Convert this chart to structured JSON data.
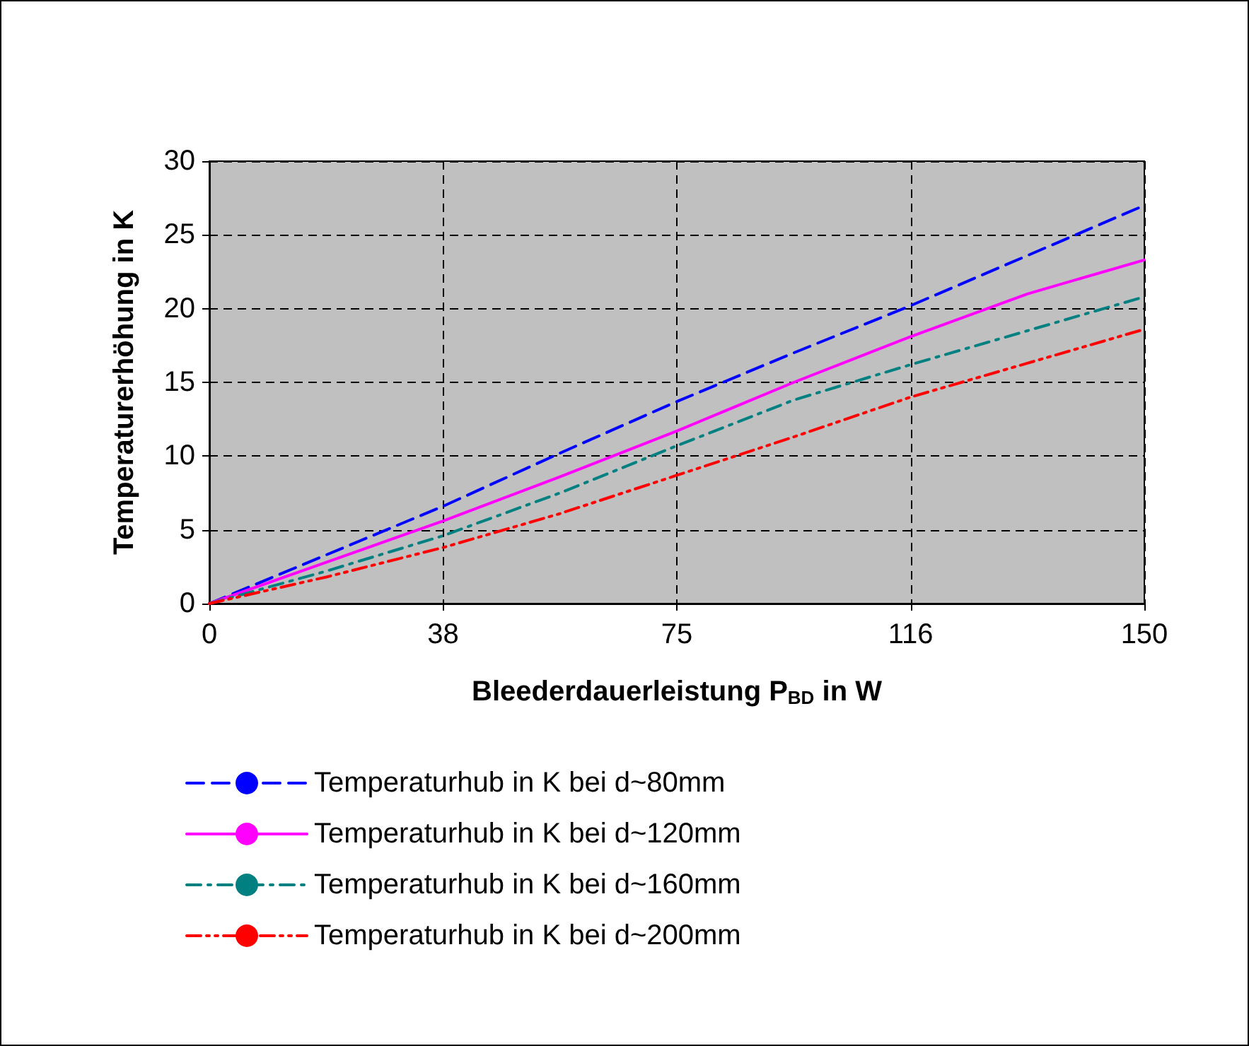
{
  "chart_data": {
    "type": "line",
    "xlabel": "Bleederdauerleistung P$_{BD}$ in W",
    "ylabel": "Temperaturerhöhung in K",
    "categories": [
      "0",
      null,
      "38",
      null,
      "75",
      null,
      "116",
      null,
      "150"
    ],
    "ylim": [
      0,
      30
    ],
    "yticks": [
      0,
      5,
      10,
      15,
      20,
      25,
      30
    ],
    "grid": true,
    "legend": "bottom",
    "marker": "none",
    "series": [
      {
        "name": "Temperaturhub in K bei d~80mm",
        "color": "#0000ff",
        "line_style": "dashed",
        "values": [
          0,
          3.3,
          6.6,
          10.2,
          13.7,
          17,
          20.2,
          23.6,
          27
        ]
      },
      {
        "name": "Temperaturhub in K bei d~120mm",
        "color": "#ff00ff",
        "line_style": "solid",
        "values": [
          0,
          2.8,
          5.6,
          8.6,
          11.7,
          15,
          18.1,
          21,
          23.3
        ]
      },
      {
        "name": "Temperaturhub in K bei d~160mm",
        "color": "#008080",
        "line_style": "dashdot",
        "values": [
          0,
          2.2,
          4.6,
          7.5,
          10.7,
          13.8,
          16.2,
          18.5,
          20.8
        ]
      },
      {
        "name": "Temperaturhub in K bei d~200mm",
        "color": "#ff0000",
        "line_style": "dashdotdot",
        "values": [
          0,
          1.8,
          3.8,
          6.1,
          8.7,
          11.3,
          14,
          16.3,
          18.6
        ]
      }
    ]
  }
}
